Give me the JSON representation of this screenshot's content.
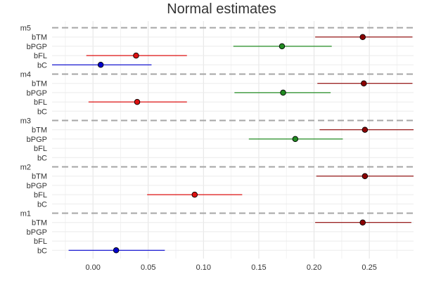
{
  "chart_data": {
    "type": "scatter",
    "title": "Normal estimates",
    "xlabel": "",
    "ylabel": "",
    "xlim": [
      -0.037,
      0.29
    ],
    "x_ticks": [
      "0.00",
      "0.05",
      "0.10",
      "0.15",
      "0.20",
      "0.25"
    ],
    "x_tick_values": [
      0.0,
      0.05,
      0.1,
      0.15,
      0.2,
      0.25
    ],
    "grid": true,
    "legend": "none",
    "models": [
      {
        "name": "m5",
        "params": [
          {
            "name": "bTM",
            "estimate": 0.244,
            "lower": 0.201,
            "upper": 0.289,
            "color": "#8b0000"
          },
          {
            "name": "bPGP",
            "estimate": 0.171,
            "lower": 0.127,
            "upper": 0.216,
            "color": "#228b22"
          },
          {
            "name": "bFL",
            "estimate": 0.039,
            "lower": -0.006,
            "upper": 0.085,
            "color": "#dd1111"
          },
          {
            "name": "bC",
            "estimate": 0.007,
            "lower": -0.037,
            "upper": 0.053,
            "color": "#0000cd"
          }
        ]
      },
      {
        "name": "m4",
        "params": [
          {
            "name": "bTM",
            "estimate": 0.245,
            "lower": 0.203,
            "upper": 0.289,
            "color": "#8b0000"
          },
          {
            "name": "bPGP",
            "estimate": 0.172,
            "lower": 0.128,
            "upper": 0.215,
            "color": "#228b22"
          },
          {
            "name": "bFL",
            "estimate": 0.04,
            "lower": -0.004,
            "upper": 0.085,
            "color": "#dd1111"
          },
          {
            "name": "bC",
            "estimate": null,
            "lower": null,
            "upper": null,
            "color": "#0000cd"
          }
        ]
      },
      {
        "name": "m3",
        "params": [
          {
            "name": "bTM",
            "estimate": 0.246,
            "lower": 0.205,
            "upper": 0.29,
            "color": "#8b0000"
          },
          {
            "name": "bPGP",
            "estimate": 0.183,
            "lower": 0.141,
            "upper": 0.226,
            "color": "#228b22"
          },
          {
            "name": "bFL",
            "estimate": null,
            "lower": null,
            "upper": null,
            "color": "#dd1111"
          },
          {
            "name": "bC",
            "estimate": null,
            "lower": null,
            "upper": null,
            "color": "#0000cd"
          }
        ]
      },
      {
        "name": "m2",
        "params": [
          {
            "name": "bTM",
            "estimate": 0.246,
            "lower": 0.202,
            "upper": 0.29,
            "color": "#8b0000"
          },
          {
            "name": "bPGP",
            "estimate": null,
            "lower": null,
            "upper": null,
            "color": "#228b22"
          },
          {
            "name": "bFL",
            "estimate": 0.092,
            "lower": 0.049,
            "upper": 0.135,
            "color": "#dd1111"
          },
          {
            "name": "bC",
            "estimate": null,
            "lower": null,
            "upper": null,
            "color": "#0000cd"
          }
        ]
      },
      {
        "name": "m1",
        "params": [
          {
            "name": "bTM",
            "estimate": 0.244,
            "lower": 0.201,
            "upper": 0.288,
            "color": "#8b0000"
          },
          {
            "name": "bPGP",
            "estimate": null,
            "lower": null,
            "upper": null,
            "color": "#228b22"
          },
          {
            "name": "bFL",
            "estimate": null,
            "lower": null,
            "upper": null,
            "color": "#dd1111"
          },
          {
            "name": "bC",
            "estimate": 0.021,
            "lower": -0.022,
            "upper": 0.065,
            "color": "#0000cd"
          }
        ]
      }
    ]
  }
}
